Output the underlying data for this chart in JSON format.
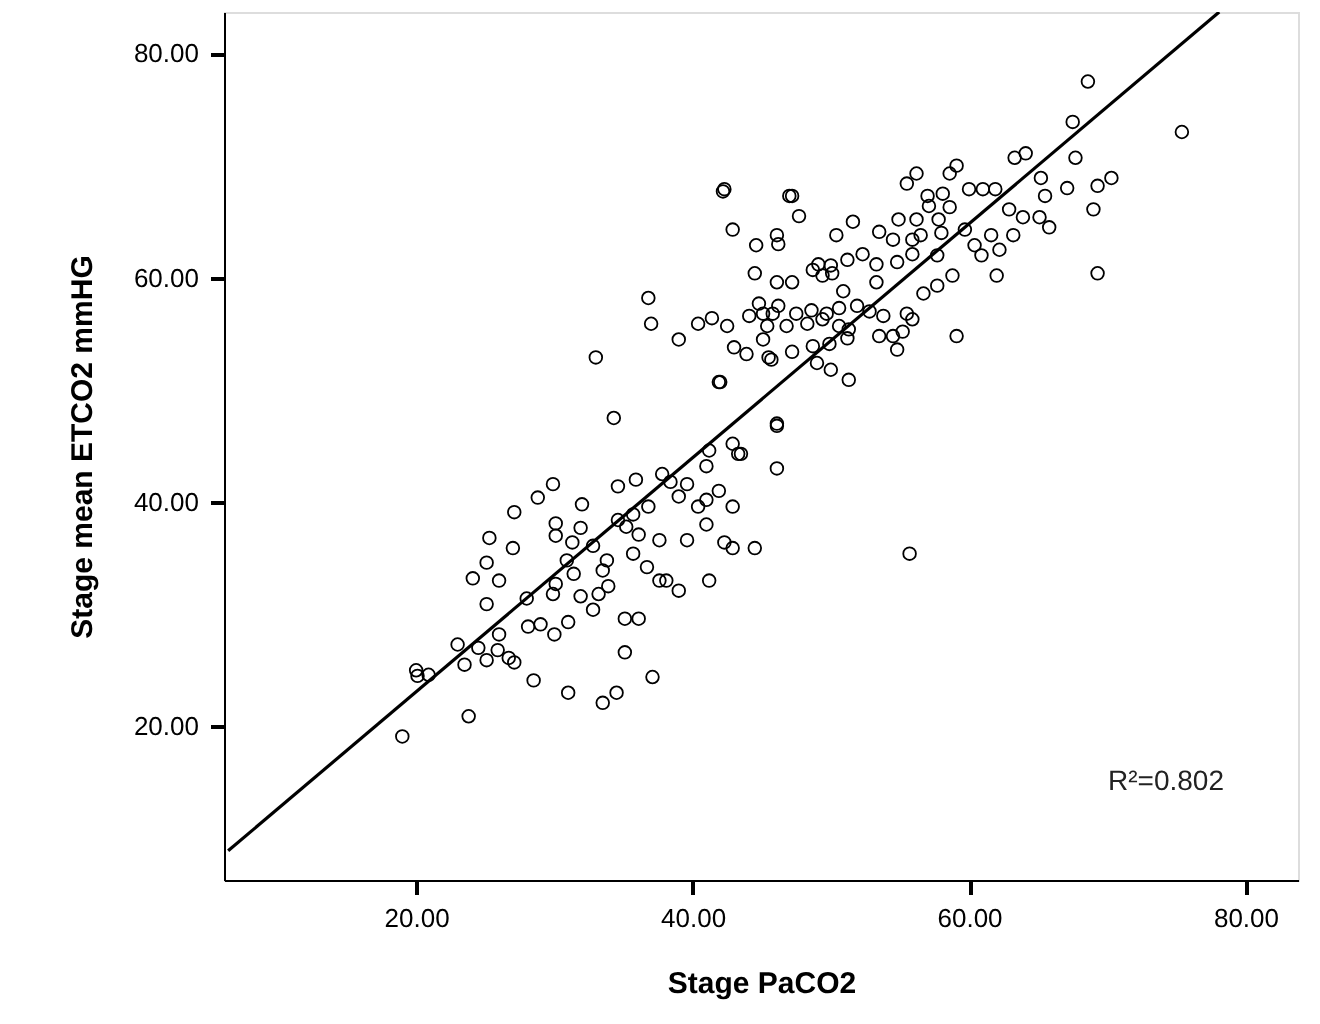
{
  "chart_data": {
    "type": "scatter",
    "xlabel": "Stage PaCO2",
    "ylabel": "Stage mean ETCO2 mmHG",
    "xlim": [
      6.1,
      83.8
    ],
    "ylim": [
      6.3,
      83.7
    ],
    "xticks": [
      {
        "value": 20,
        "label": "20.00"
      },
      {
        "value": 40,
        "label": "40.00"
      },
      {
        "value": 60,
        "label": "60.00"
      },
      {
        "value": 80,
        "label": "80.00"
      }
    ],
    "yticks": [
      {
        "value": 20,
        "label": "20.00"
      },
      {
        "value": 40,
        "label": "40.00"
      },
      {
        "value": 60,
        "label": "60.00"
      },
      {
        "value": 80,
        "label": "80.00"
      }
    ],
    "grid": false,
    "annotations": [
      "R²=0.802"
    ],
    "series": [
      {
        "color": "#000000",
        "marker": "circle",
        "x": [
          19.0,
          23.8,
          20.0,
          20.1,
          20.9,
          23.0,
          23.5,
          24.5,
          25.1,
          25.9,
          26.0,
          26.7,
          27.1,
          28.5,
          31.0,
          33.5,
          34.5,
          37.1,
          35.1,
          35.1,
          36.1,
          34.3,
          25.1,
          24.1,
          26.0,
          25.1,
          25.3,
          27.1,
          27.0,
          28.8,
          29.9,
          28.0,
          28.1,
          29.0,
          30.0,
          31.0,
          29.9,
          30.1,
          30.1,
          31.9,
          31.3,
          32.0,
          32.8,
          31.9,
          33.2,
          33.9,
          31.4,
          33.8,
          34.6,
          35.9,
          35.7,
          34.6,
          36.1,
          35.7,
          36.7,
          37.6,
          37.8,
          38.4,
          39.0,
          39.6,
          41.0,
          41.2,
          41.9,
          41.0,
          40.4,
          41.0,
          42.3,
          42.9,
          44.5,
          41.2,
          39.6,
          37.6,
          39.0,
          38.1,
          42.9,
          43.5,
          46.1,
          46.1,
          36.8,
          35.2,
          32.8,
          30.9,
          33.5,
          30.1,
          55.7,
          68.6,
          75.4,
          67.5,
          67.7,
          63.3,
          64.1,
          65.2,
          65.5,
          67.1,
          69.3,
          70.3,
          69.0,
          69.3,
          62.0,
          65.8,
          65.1,
          63.9,
          62.9,
          63.2,
          62.2,
          60.9,
          60.4,
          61.6,
          59.7,
          60.0,
          61.0,
          61.9,
          59.1,
          58.6,
          56.2,
          55.5,
          57.0,
          58.1,
          57.1,
          58.6,
          57.8,
          58.0,
          56.2,
          54.9,
          55.9,
          56.5,
          54.5,
          53.5,
          51.6,
          54.8,
          53.3,
          55.9,
          57.7,
          58.8,
          57.7,
          56.7,
          52.3,
          51.2,
          50.4,
          50.0,
          49.1,
          49.4,
          50.1,
          48.7,
          47.7,
          47.2,
          46.1,
          46.2,
          44.6,
          42.9,
          42.3,
          44.5,
          46.1,
          47.2,
          50.9,
          53.3,
          51.9,
          50.6,
          49.7,
          48.6,
          47.5,
          46.2,
          45.1,
          44.1,
          42.5,
          45.4,
          46.8,
          48.3,
          49.4,
          50.6,
          51.3,
          52.8,
          53.8,
          55.5,
          55.9,
          53.5,
          54.5,
          55.2,
          54.8,
          59.1,
          51.2,
          49.9,
          48.7,
          47.2,
          45.7,
          43.9,
          43.0,
          41.9,
          49.0,
          50.0,
          51.3,
          46.1,
          42.9,
          43.3,
          42.2,
          47.0,
          36.8,
          37.0,
          39.0,
          40.4,
          41.4,
          45.1,
          45.5,
          33.0,
          42.0,
          44.8,
          45.8
        ],
        "values": [
          19.1,
          20.9,
          25.0,
          24.5,
          24.6,
          27.3,
          25.5,
          27.0,
          25.9,
          26.8,
          28.2,
          26.1,
          25.7,
          24.1,
          23.0,
          22.1,
          23.0,
          24.4,
          26.6,
          29.6,
          29.6,
          47.5,
          30.9,
          33.2,
          33.0,
          34.6,
          36.8,
          39.1,
          35.9,
          40.4,
          41.6,
          31.4,
          28.9,
          29.1,
          28.2,
          29.3,
          31.8,
          38.1,
          37.0,
          37.7,
          36.4,
          39.8,
          30.4,
          31.6,
          31.8,
          32.5,
          33.6,
          34.8,
          41.4,
          42.0,
          38.9,
          38.4,
          37.1,
          35.4,
          34.2,
          33.0,
          42.5,
          41.8,
          40.5,
          41.6,
          43.2,
          44.6,
          41.0,
          40.2,
          39.6,
          38.0,
          36.4,
          35.9,
          35.9,
          33.0,
          36.6,
          36.6,
          32.1,
          33.0,
          39.6,
          44.3,
          46.8,
          43.0,
          39.6,
          37.8,
          36.1,
          34.8,
          33.9,
          32.7,
          35.4,
          77.5,
          73.0,
          73.9,
          70.7,
          70.7,
          71.1,
          68.9,
          67.3,
          68.0,
          68.2,
          68.9,
          66.1,
          60.4,
          60.2,
          64.5,
          65.4,
          65.4,
          66.1,
          63.8,
          62.5,
          62.0,
          62.9,
          63.8,
          64.3,
          67.9,
          67.9,
          67.9,
          70.0,
          69.3,
          69.3,
          68.4,
          67.3,
          67.5,
          66.4,
          66.3,
          65.2,
          64.0,
          65.2,
          65.2,
          63.4,
          63.8,
          63.4,
          64.1,
          65.0,
          61.4,
          61.2,
          62.1,
          62.0,
          60.2,
          59.3,
          58.6,
          62.1,
          61.6,
          63.8,
          61.1,
          61.2,
          60.2,
          60.4,
          60.7,
          65.5,
          67.3,
          63.8,
          63.0,
          62.9,
          64.3,
          67.9,
          60.4,
          59.6,
          59.6,
          58.8,
          59.6,
          57.5,
          57.3,
          56.8,
          57.1,
          56.8,
          57.5,
          56.8,
          56.6,
          55.7,
          55.7,
          55.7,
          55.9,
          56.3,
          55.7,
          55.4,
          57.0,
          56.6,
          56.8,
          56.3,
          54.8,
          54.8,
          55.2,
          53.6,
          54.8,
          54.6,
          54.1,
          53.9,
          53.4,
          52.7,
          53.2,
          53.8,
          50.7,
          52.4,
          51.8,
          50.9,
          47.0,
          45.2,
          44.3,
          67.7,
          67.3,
          58.2,
          55.9,
          54.5,
          55.9,
          56.4,
          54.5,
          52.9,
          52.9,
          50.7,
          57.7,
          56.8
        ]
      },
      {
        "type": "line",
        "color": "#000000",
        "x": [
          6.4,
          78.1
        ],
        "values": [
          8.9,
          83.7
        ]
      }
    ]
  }
}
